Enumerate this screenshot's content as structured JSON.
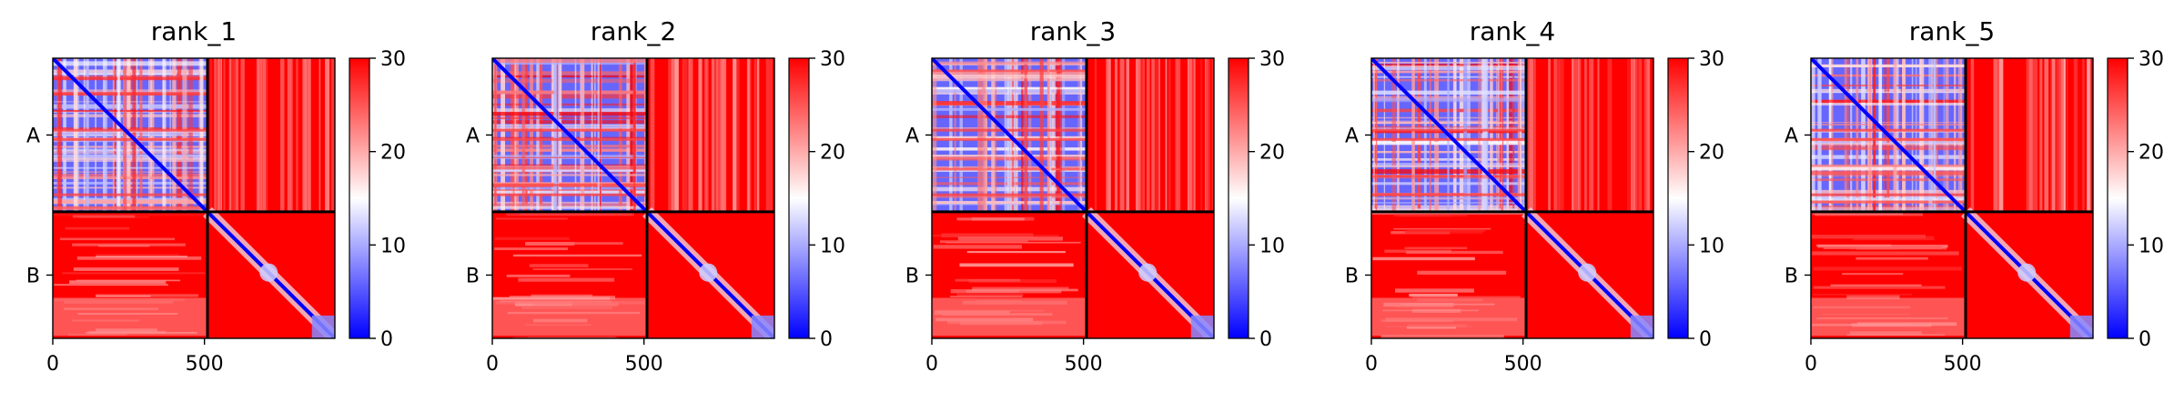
{
  "colors": {
    "low": "#0000ff",
    "mid": "#ffffff",
    "high": "#ff0000",
    "divider": "#000000"
  },
  "chart_data": [
    {
      "type": "heatmap",
      "title": "rank_1",
      "x_ticks": [
        "0",
        "500"
      ],
      "y_ticks": [
        "A",
        "B"
      ],
      "colorbar": {
        "min": 0,
        "max": 30,
        "ticks": [
          "0",
          "10",
          "20",
          "30"
        ],
        "colormap": "bwr"
      },
      "chains": [
        {
          "name": "A",
          "length": 510
        },
        {
          "name": "B",
          "length": 420
        }
      ]
    },
    {
      "type": "heatmap",
      "title": "rank_2",
      "x_ticks": [
        "0",
        "500"
      ],
      "y_ticks": [
        "A",
        "B"
      ],
      "colorbar": {
        "min": 0,
        "max": 30,
        "ticks": [
          "0",
          "10",
          "20",
          "30"
        ],
        "colormap": "bwr"
      },
      "chains": [
        {
          "name": "A",
          "length": 510
        },
        {
          "name": "B",
          "length": 420
        }
      ]
    },
    {
      "type": "heatmap",
      "title": "rank_3",
      "x_ticks": [
        "0",
        "500"
      ],
      "y_ticks": [
        "A",
        "B"
      ],
      "colorbar": {
        "min": 0,
        "max": 30,
        "ticks": [
          "0",
          "10",
          "20",
          "30"
        ],
        "colormap": "bwr"
      },
      "chains": [
        {
          "name": "A",
          "length": 510
        },
        {
          "name": "B",
          "length": 420
        }
      ]
    },
    {
      "type": "heatmap",
      "title": "rank_4",
      "x_ticks": [
        "0",
        "500"
      ],
      "y_ticks": [
        "A",
        "B"
      ],
      "colorbar": {
        "min": 0,
        "max": 30,
        "ticks": [
          "0",
          "10",
          "20",
          "30"
        ],
        "colormap": "bwr"
      },
      "chains": [
        {
          "name": "A",
          "length": 510
        },
        {
          "name": "B",
          "length": 420
        }
      ]
    },
    {
      "type": "heatmap",
      "title": "rank_5",
      "x_ticks": [
        "0",
        "500"
      ],
      "y_ticks": [
        "A",
        "B"
      ],
      "colorbar": {
        "min": 0,
        "max": 30,
        "ticks": [
          "0",
          "10",
          "20",
          "30"
        ],
        "colormap": "bwr"
      },
      "chains": [
        {
          "name": "A",
          "length": 510
        },
        {
          "name": "B",
          "length": 420
        }
      ]
    }
  ]
}
